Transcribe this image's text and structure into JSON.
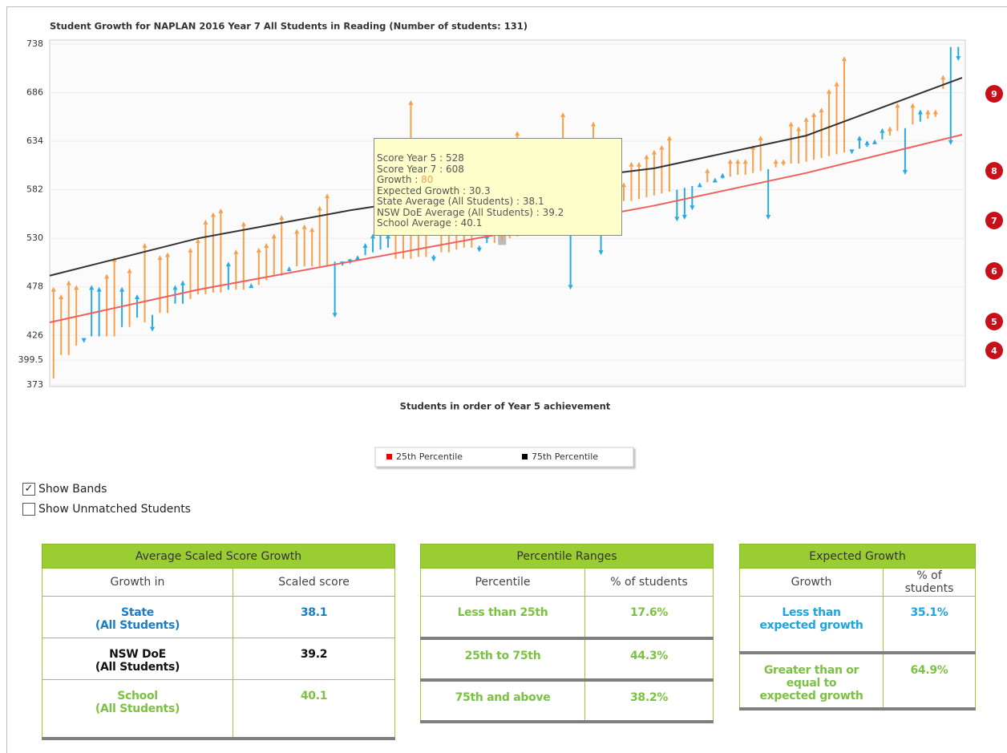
{
  "chart_data": {
    "type": "growth",
    "title": "Student Growth for NAPLAN 2016 Year 7 All Students in Reading (Number of students: 131)",
    "x_label": "Students in order of Year 5 achievement",
    "ylim": [
      373,
      738
    ],
    "yticks": [
      373,
      399.5,
      426,
      478,
      530,
      582,
      634,
      686,
      738
    ],
    "xlim": [
      0.5,
      120.5
    ],
    "grid": true,
    "groups": [
      {
        "color": "#f7a04b",
        "x": [
          1,
          2,
          3,
          4,
          8,
          9,
          11,
          13,
          15,
          16,
          19,
          20,
          21,
          22,
          23,
          25,
          26,
          28,
          29,
          30,
          31,
          33,
          34,
          35,
          36,
          37,
          46,
          47,
          48,
          49,
          50,
          52,
          53,
          54,
          55,
          56,
          59,
          60,
          61,
          62,
          65,
          66,
          67,
          68,
          70,
          71,
          72,
          74,
          75,
          76,
          77,
          78,
          79,
          80,
          81,
          82,
          87,
          90,
          91,
          92,
          93,
          94,
          96,
          97,
          98,
          99,
          100,
          101,
          102,
          103,
          104,
          105,
          111,
          112,
          114,
          116,
          117,
          118
        ],
        "from": [
          380,
          405,
          405,
          415,
          425,
          425,
          435,
          440,
          450,
          450,
          465,
          470,
          470,
          472,
          472,
          475,
          475,
          480,
          485,
          490,
          490,
          500,
          500,
          500,
          500,
          500,
          508,
          508,
          508,
          510,
          510,
          515,
          515,
          518,
          520,
          520,
          525,
          528,
          530,
          532,
          545,
          548,
          550,
          552,
          558,
          560,
          562,
          565,
          568,
          570,
          570,
          572,
          574,
          576,
          578,
          580,
          590,
          596,
          598,
          598,
          600,
          602,
          606,
          608,
          610,
          610,
          612,
          614,
          616,
          618,
          620,
          622,
          640,
          645,
          652,
          658,
          660,
          690
        ],
        "to": [
          478,
          470,
          485,
          480,
          492,
          510,
          498,
          525,
          512,
          515,
          520,
          530,
          550,
          558,
          562,
          518,
          548,
          520,
          525,
          535,
          555,
          540,
          545,
          542,
          565,
          578,
          560,
          572,
          678,
          560,
          580,
          560,
          585,
          560,
          555,
          550,
          570,
          608,
          560,
          645,
          580,
          600,
          575,
          665,
          600,
          605,
          655,
          580,
          590,
          590,
          612,
          612,
          620,
          625,
          630,
          640,
          605,
          615,
          615,
          615,
          630,
          640,
          615,
          615,
          655,
          650,
          660,
          665,
          670,
          690,
          698,
          725,
          650,
          675,
          675,
          668,
          668,
          705
        ]
      },
      {
        "color": "#29aae1",
        "x": [
          5,
          6,
          7,
          10,
          12,
          14,
          17,
          18,
          24,
          27,
          32,
          38,
          39,
          40,
          41,
          42,
          43,
          44,
          45,
          51,
          57,
          58,
          63,
          64,
          69,
          73,
          83,
          84,
          85,
          86,
          88,
          89,
          95,
          106,
          107,
          108,
          109,
          110,
          113,
          115,
          119,
          120
        ],
        "from": [
          420,
          425,
          425,
          435,
          445,
          448,
          460,
          460,
          475,
          480,
          498,
          505,
          505,
          508,
          508,
          512,
          515,
          518,
          520,
          512,
          522,
          525,
          535,
          540,
          555,
          563,
          582,
          584,
          586,
          588,
          592,
          594,
          604,
          624,
          626,
          628,
          632,
          636,
          648,
          655,
          735,
          735
        ],
        "to": [
          418,
          480,
          478,
          478,
          470,
          430,
          480,
          485,
          505,
          482,
          500,
          445,
          500,
          502,
          512,
          525,
          535,
          538,
          535,
          505,
          515,
          535,
          540,
          548,
          475,
          512,
          548,
          550,
          560,
          590,
          595,
          600,
          550,
          620,
          640,
          635,
          636,
          648,
          598,
          668,
          630,
          720
        ]
      }
    ],
    "curves": [
      {
        "name": "25th Percentile",
        "color": "#f0605c",
        "x": [
          0.5,
          20,
          40,
          60,
          80,
          100,
          120.5
        ],
        "values": [
          440,
          475,
          505,
          535,
          565,
          600,
          641
        ]
      },
      {
        "name": "75th Percentile",
        "color": "#333333",
        "x": [
          0.5,
          20,
          40,
          60,
          80,
          100,
          120.5
        ],
        "values": [
          490,
          530,
          560,
          585,
          605,
          640,
          702
        ]
      }
    ],
    "bands": [
      "9",
      "8",
      "7",
      "6",
      "5",
      "4"
    ],
    "tooltip": [
      {
        "label": "Score Year 5 : ",
        "value": 528
      },
      {
        "label": "Score Year 7 : ",
        "value": 608
      },
      {
        "label": "Growth : ",
        "value": 80,
        "value_color": "#f7a04b"
      },
      {
        "label": "Expected Growth : ",
        "value": 30.3
      },
      {
        "label": "State Average (All Students) : ",
        "value": 38.1
      },
      {
        "label": "NSW DoE Average (All Students) : ",
        "value": 39.2
      },
      {
        "label": "School Average : ",
        "value": 40.1
      }
    ]
  },
  "options": [
    "Show Bands",
    "Show Unmatched Students"
  ],
  "checked": [
    true,
    false
  ],
  "tables": [
    {
      "title": "Average Scaled Score Growth",
      "headers": [
        "Growth in",
        "Scaled score"
      ],
      "rows": [
        [
          "State\n(All Students)",
          "38.1"
        ],
        [
          "NSW DoE\n(All Students)",
          "39.2"
        ],
        [
          "School\n(All Students)",
          "40.1"
        ]
      ],
      "row_colors": [
        "#1b7dc4",
        "#111111",
        "#7cc242"
      ]
    },
    {
      "title": "Percentile Ranges",
      "headers": [
        "Percentile",
        "% of students"
      ],
      "rows": [
        [
          "Less than 25th",
          "17.6%"
        ],
        [
          "25th to 75th",
          "44.3%"
        ],
        [
          "75th and above",
          "38.2%"
        ]
      ],
      "row_colors": [
        "#7cc242",
        "#7cc242",
        "#7cc242"
      ]
    },
    {
      "title": "Expected Growth",
      "headers": [
        "Growth",
        "% of\nstudents"
      ],
      "rows": [
        [
          "Less than\nexpected growth",
          "35.1%"
        ],
        [
          "Greater than or\nequal to\nexpected growth",
          "64.9%"
        ]
      ],
      "row_colors": [
        "#1ba6e0",
        "#7cc242"
      ]
    }
  ]
}
